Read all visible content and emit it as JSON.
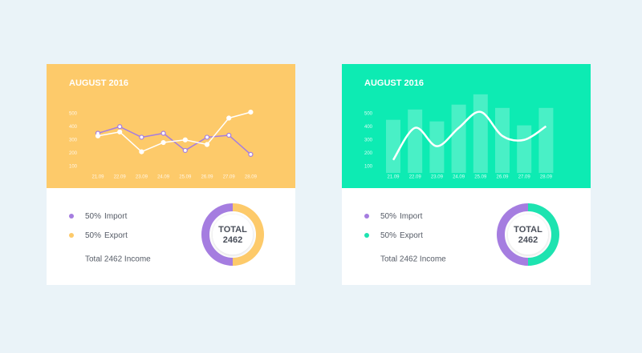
{
  "chart_data": [
    {
      "type": "line",
      "title": "AUGUST 2016",
      "categories": [
        "21.09",
        "22.09",
        "23.09",
        "24.09",
        "25.09",
        "26.09",
        "27.09",
        "28.09"
      ],
      "series": [
        {
          "color": "#a57de0",
          "values": [
            350,
            400,
            320,
            350,
            220,
            320,
            335,
            190
          ]
        },
        {
          "color": "#ffffff",
          "values": [
            330,
            360,
            210,
            280,
            300,
            265,
            465,
            510
          ]
        }
      ],
      "markers": true,
      "ylim": [
        50,
        650
      ],
      "yticks": [
        100,
        200,
        300,
        400,
        500
      ]
    },
    {
      "type": "donut",
      "categories": [
        "Import",
        "Export"
      ],
      "values": [
        50,
        50
      ],
      "value_labels": [
        "50%",
        "50%"
      ],
      "colors": [
        "#a57de0",
        "#fdca6a"
      ],
      "center_label": [
        "TOTAL",
        "2462"
      ],
      "note": "Total 2462 Income"
    },
    {
      "type": "bar",
      "title": "AUGUST 2016",
      "categories": [
        "21.09",
        "22.09",
        "23.09",
        "24.09",
        "25.09",
        "26.09",
        "27.09",
        "28.09"
      ],
      "series": [
        {
          "type": "bar",
          "color": "#ffffff",
          "values": [
            452,
            530,
            440,
            567,
            645,
            542,
            410,
            542
          ]
        },
        {
          "type": "line",
          "smooth": true,
          "color": "#ffffff",
          "values": [
            148,
            391,
            252,
            391,
            512,
            330,
            300,
            403
          ]
        }
      ],
      "ylim": [
        50,
        650
      ],
      "yticks": [
        100,
        200,
        300,
        400,
        500
      ]
    },
    {
      "type": "donut",
      "categories": [
        "Import",
        "Export"
      ],
      "values": [
        50,
        50
      ],
      "value_labels": [
        "50%",
        "50%"
      ],
      "colors": [
        "#a57de0",
        "#1de3b0"
      ],
      "center_label": [
        "TOTAL",
        "2462"
      ],
      "note": "Total 2462 Income"
    }
  ]
}
